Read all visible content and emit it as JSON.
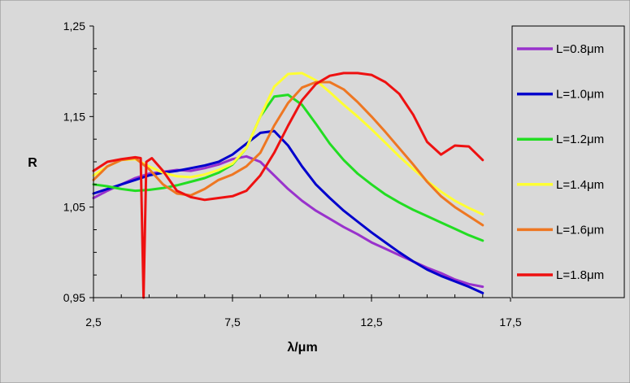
{
  "chart_data": {
    "type": "line",
    "xlabel": "λ/μm",
    "ylabel": "R",
    "xlim": [
      2.5,
      17.5
    ],
    "ylim": [
      0.95,
      1.25
    ],
    "xticks": [
      "2,5",
      "7,5",
      "12,5",
      "17,5"
    ],
    "yticks": [
      "0,95",
      "1,05",
      "1,15",
      "1,25"
    ],
    "grid": false,
    "legend_position": "right",
    "colors": {
      "background": "#d9d9d9",
      "plot_area": "#d9d9d9",
      "axis": "#000000"
    },
    "series": [
      {
        "name": "L=0.8μm",
        "color": "#9932CC",
        "x": [
          2.5,
          3.0,
          3.5,
          4.0,
          4.5,
          5.0,
          5.5,
          6.0,
          6.5,
          7.0,
          7.5,
          8.0,
          8.5,
          9.0,
          9.5,
          10.0,
          10.5,
          11.0,
          11.5,
          12.0,
          12.5,
          13.0,
          13.5,
          14.0,
          14.5,
          15.0,
          15.5,
          16.0,
          16.5
        ],
        "y": [
          1.06,
          1.068,
          1.075,
          1.082,
          1.087,
          1.089,
          1.091,
          1.09,
          1.093,
          1.097,
          1.103,
          1.106,
          1.1,
          1.085,
          1.07,
          1.057,
          1.046,
          1.037,
          1.028,
          1.02,
          1.011,
          1.004,
          0.997,
          0.99,
          0.983,
          0.977,
          0.97,
          0.965,
          0.962
        ]
      },
      {
        "name": "L=1.0μm",
        "color": "#0000CC",
        "x": [
          2.5,
          3.0,
          3.5,
          4.0,
          4.5,
          5.0,
          5.5,
          6.0,
          6.5,
          7.0,
          7.5,
          8.0,
          8.5,
          9.0,
          9.5,
          10.0,
          10.5,
          11.0,
          11.5,
          12.0,
          12.5,
          13.0,
          13.5,
          14.0,
          14.5,
          15.0,
          15.5,
          16.0,
          16.5
        ],
        "y": [
          1.065,
          1.07,
          1.075,
          1.08,
          1.085,
          1.088,
          1.09,
          1.093,
          1.096,
          1.1,
          1.108,
          1.12,
          1.132,
          1.134,
          1.118,
          1.095,
          1.075,
          1.06,
          1.046,
          1.034,
          1.022,
          1.011,
          1.0,
          0.99,
          0.981,
          0.974,
          0.968,
          0.962,
          0.955
        ]
      },
      {
        "name": "L=1.2μm",
        "color": "#22DD22",
        "x": [
          2.5,
          3.0,
          3.5,
          4.0,
          4.5,
          5.0,
          5.5,
          6.0,
          6.5,
          7.0,
          7.5,
          8.0,
          8.5,
          9.0,
          9.5,
          10.0,
          10.5,
          11.0,
          11.5,
          12.0,
          12.5,
          13.0,
          13.5,
          14.0,
          14.5,
          15.0,
          15.5,
          16.0,
          16.5
        ],
        "y": [
          1.075,
          1.073,
          1.07,
          1.068,
          1.069,
          1.071,
          1.074,
          1.078,
          1.082,
          1.088,
          1.097,
          1.115,
          1.15,
          1.172,
          1.174,
          1.163,
          1.142,
          1.12,
          1.102,
          1.087,
          1.075,
          1.064,
          1.055,
          1.047,
          1.04,
          1.033,
          1.026,
          1.019,
          1.013
        ]
      },
      {
        "name": "L=1.4μm",
        "color": "#FFFF33",
        "x": [
          2.5,
          3.0,
          3.5,
          4.0,
          4.5,
          5.0,
          5.5,
          6.0,
          6.5,
          7.0,
          7.5,
          8.0,
          8.5,
          9.0,
          9.5,
          10.0,
          10.5,
          11.0,
          11.5,
          12.0,
          12.5,
          13.0,
          13.5,
          14.0,
          14.5,
          15.0,
          15.5,
          16.0,
          16.5
        ],
        "y": [
          1.085,
          1.095,
          1.102,
          1.103,
          1.095,
          1.088,
          1.084,
          1.083,
          1.086,
          1.091,
          1.098,
          1.115,
          1.15,
          1.183,
          1.197,
          1.198,
          1.19,
          1.177,
          1.163,
          1.15,
          1.136,
          1.121,
          1.106,
          1.092,
          1.079,
          1.067,
          1.057,
          1.049,
          1.042
        ]
      },
      {
        "name": "L=1.6μm",
        "color": "#EE7722",
        "x": [
          2.5,
          3.0,
          3.5,
          4.0,
          4.5,
          5.0,
          5.5,
          6.0,
          6.5,
          7.0,
          7.5,
          8.0,
          8.5,
          9.0,
          9.5,
          10.0,
          10.5,
          11.0,
          11.5,
          12.0,
          12.5,
          13.0,
          13.5,
          14.0,
          14.5,
          15.0,
          15.5,
          16.0,
          16.5
        ],
        "y": [
          1.08,
          1.095,
          1.102,
          1.104,
          1.092,
          1.075,
          1.065,
          1.063,
          1.07,
          1.08,
          1.086,
          1.095,
          1.11,
          1.14,
          1.165,
          1.182,
          1.188,
          1.188,
          1.18,
          1.166,
          1.15,
          1.133,
          1.115,
          1.097,
          1.078,
          1.062,
          1.05,
          1.04,
          1.03
        ]
      },
      {
        "name": "L=1.8μm",
        "color": "#EE1111",
        "x": [
          2.5,
          3.0,
          3.5,
          4.0,
          4.2,
          4.3,
          4.4,
          4.6,
          5.0,
          5.5,
          6.0,
          6.5,
          7.0,
          7.5,
          8.0,
          8.5,
          9.0,
          9.5,
          10.0,
          10.5,
          11.0,
          11.5,
          12.0,
          12.5,
          13.0,
          13.5,
          14.0,
          14.5,
          15.0,
          15.5,
          16.0,
          16.5
        ],
        "y": [
          1.09,
          1.1,
          1.103,
          1.105,
          1.104,
          0.95,
          1.1,
          1.104,
          1.09,
          1.068,
          1.061,
          1.058,
          1.06,
          1.062,
          1.068,
          1.085,
          1.11,
          1.14,
          1.168,
          1.186,
          1.195,
          1.198,
          1.198,
          1.196,
          1.188,
          1.175,
          1.152,
          1.122,
          1.108,
          1.118,
          1.117,
          1.102
        ]
      }
    ]
  }
}
